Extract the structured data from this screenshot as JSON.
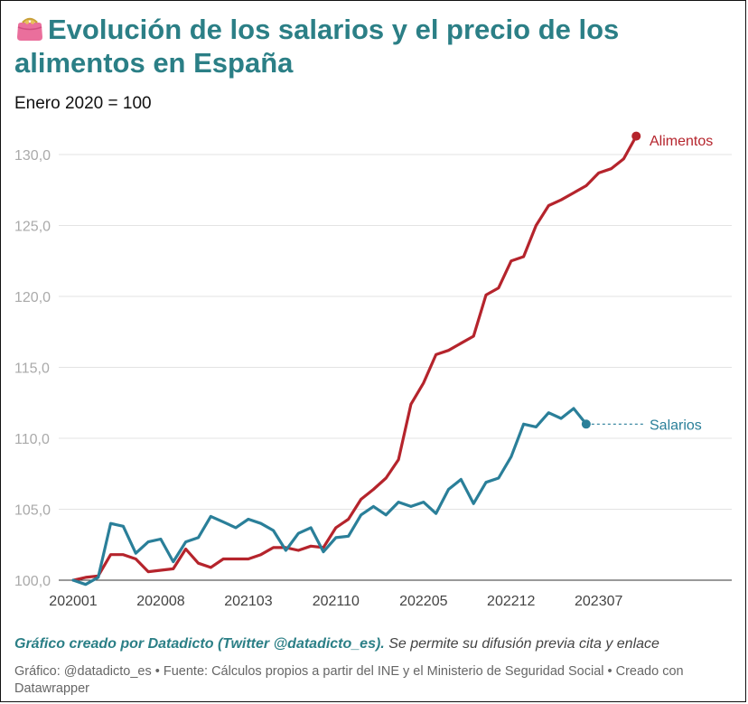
{
  "header": {
    "title": "Evolución de los salarios y el precio de los alimentos en España",
    "subtitle": "Enero 2020 = 100",
    "title_icon": "purse-icon"
  },
  "footer": {
    "credit": "Gráfico creado por Datadicto (Twitter @datadicto_es).",
    "credit_note": "Se permite su difusión previa cita y enlace",
    "source": "Gráfico: @datadicto_es • Fuente: Cálculos propios a partir del INE y el Ministerio de Seguridad Social • Creado con Datawrapper"
  },
  "colors": {
    "alimentos": "#b5242c",
    "salarios": "#2a7f99",
    "title": "#2b7f86",
    "grid": "#e3e3e3"
  },
  "chart_data": {
    "type": "line",
    "title": "Evolución de los salarios y el precio de los alimentos en España",
    "subtitle": "Enero 2020 = 100",
    "xlabel": "",
    "ylabel": "",
    "x_start": "2020-01",
    "x_end": "2023-12",
    "ylim": [
      100,
      131.5
    ],
    "yticks": [
      "130,0",
      "125,0",
      "120,0",
      "115,0",
      "110,0",
      "105,0",
      "100,0"
    ],
    "ytick_values": [
      130,
      125,
      120,
      115,
      110,
      105,
      100
    ],
    "xticks": [
      "202001",
      "202008",
      "202103",
      "202110",
      "202205",
      "202212",
      "202307"
    ],
    "grid": true,
    "legend": "direct labels at line ends",
    "series": [
      {
        "name": "Alimentos",
        "start": "2020-01",
        "values": [
          100.0,
          100.2,
          100.3,
          101.8,
          101.8,
          101.5,
          100.6,
          100.7,
          100.8,
          102.2,
          101.2,
          100.9,
          101.5,
          101.5,
          101.5,
          101.8,
          102.3,
          102.3,
          102.1,
          102.4,
          102.3,
          103.7,
          104.3,
          105.7,
          106.4,
          107.2,
          108.5,
          112.4,
          113.9,
          115.9,
          116.2,
          116.7,
          117.2,
          120.1,
          120.6,
          122.5,
          122.8,
          125.0,
          126.4,
          126.8,
          127.3,
          127.8,
          128.7,
          129.0,
          129.7,
          131.3
        ]
      },
      {
        "name": "Salarios",
        "start": "2020-01",
        "values": [
          100.0,
          99.7,
          100.2,
          104.0,
          103.8,
          101.9,
          102.7,
          102.9,
          101.3,
          102.7,
          103.0,
          104.5,
          104.1,
          103.7,
          104.3,
          104.0,
          103.5,
          102.1,
          103.3,
          103.7,
          102.0,
          103.0,
          103.1,
          104.6,
          105.2,
          104.6,
          105.5,
          105.2,
          105.5,
          104.7,
          106.4,
          107.1,
          105.4,
          106.9,
          107.2,
          108.7,
          111.0,
          110.8,
          111.8,
          111.4,
          112.1,
          111.0
        ]
      }
    ]
  }
}
